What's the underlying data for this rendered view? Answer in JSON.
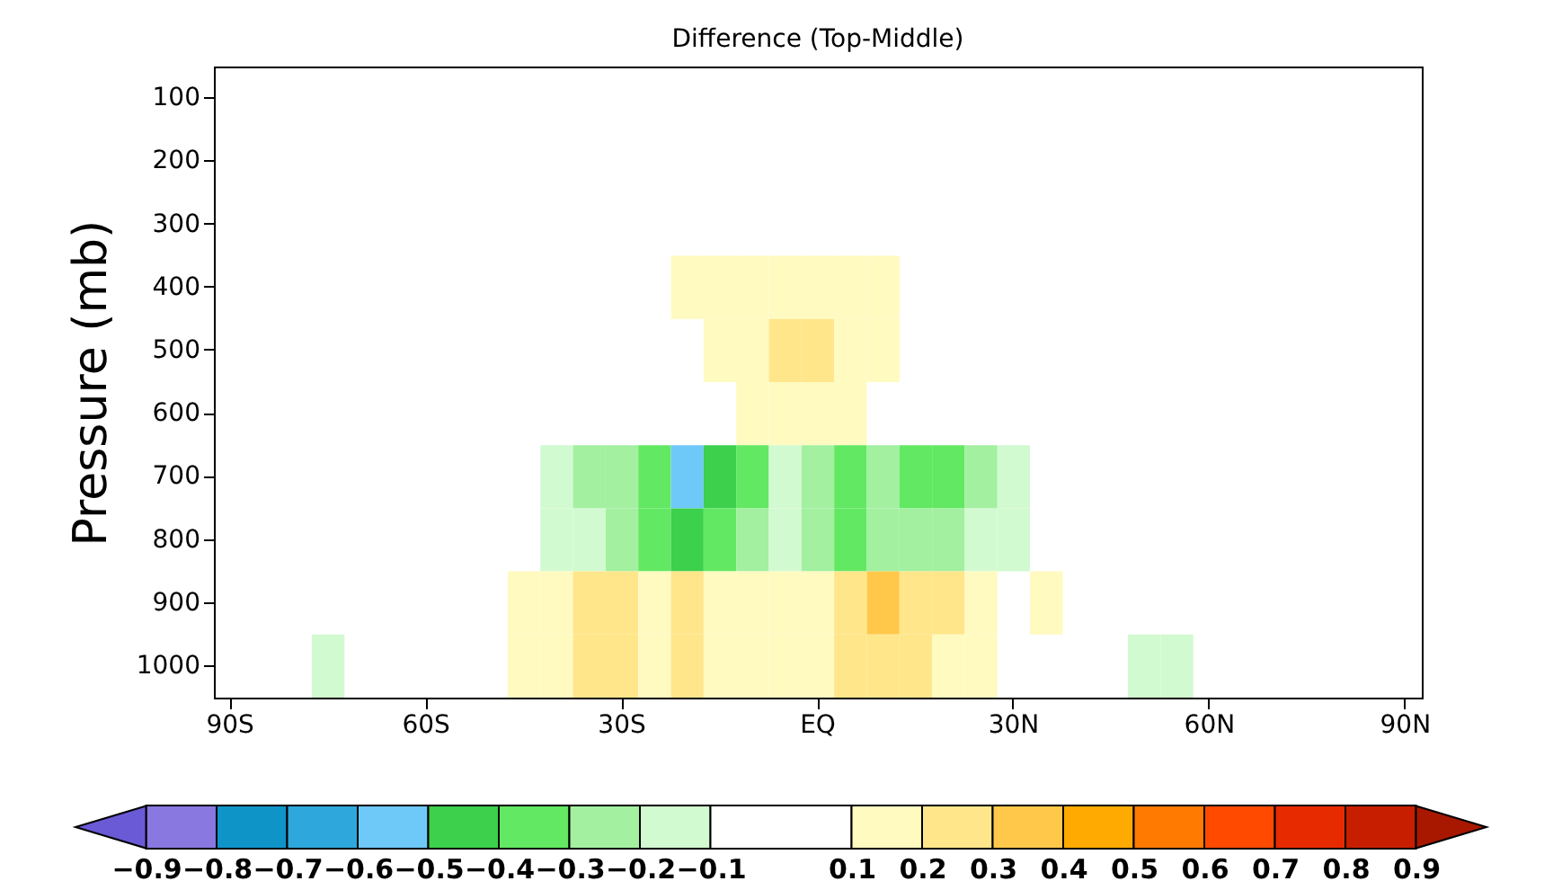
{
  "chart_data": {
    "type": "heatmap",
    "title": "Difference (Top-Middle)",
    "ylabel": "Pressure (mb)",
    "categories": [
      "90S",
      null,
      null,
      null,
      null,
      null,
      "60S",
      null,
      null,
      null,
      null,
      null,
      "30S",
      null,
      null,
      null,
      null,
      null,
      "EQ",
      null,
      null,
      null,
      null,
      null,
      "30N",
      null,
      null,
      null,
      null,
      null,
      "60N",
      null,
      null,
      null,
      null,
      null,
      "90N"
    ],
    "y_categories": [
      "100",
      "200",
      "300",
      "400",
      "500",
      "600",
      "700",
      "800",
      "900",
      "1000"
    ],
    "cells": [
      [
        null,
        null,
        null,
        null,
        null,
        null,
        null,
        null,
        null,
        null,
        null,
        null,
        null,
        null,
        null,
        null,
        null,
        null,
        null,
        null,
        null,
        null,
        null,
        null,
        null,
        null,
        null,
        null,
        null,
        null,
        null,
        null,
        null,
        null,
        null,
        null,
        null
      ],
      [
        null,
        null,
        null,
        null,
        null,
        null,
        null,
        null,
        null,
        null,
        null,
        null,
        null,
        null,
        null,
        null,
        null,
        null,
        null,
        null,
        null,
        null,
        null,
        null,
        null,
        null,
        null,
        null,
        null,
        null,
        null,
        null,
        null,
        null,
        null,
        null,
        null
      ],
      [
        null,
        null,
        null,
        null,
        null,
        null,
        null,
        null,
        null,
        null,
        null,
        null,
        null,
        null,
        null,
        null,
        null,
        null,
        null,
        null,
        null,
        null,
        null,
        null,
        null,
        null,
        null,
        null,
        null,
        null,
        null,
        null,
        null,
        null,
        null,
        null,
        null
      ],
      [
        null,
        null,
        null,
        null,
        null,
        null,
        null,
        null,
        null,
        null,
        null,
        null,
        null,
        null,
        0.15,
        0.15,
        0.15,
        0.15,
        0.15,
        0.15,
        0.15,
        null,
        null,
        null,
        null,
        null,
        null,
        null,
        null,
        null,
        null,
        null,
        null,
        null,
        null,
        null,
        null
      ],
      [
        null,
        null,
        null,
        null,
        null,
        null,
        null,
        null,
        null,
        null,
        null,
        null,
        null,
        null,
        null,
        0.15,
        0.15,
        0.25,
        0.25,
        0.15,
        0.15,
        null,
        null,
        null,
        null,
        null,
        null,
        null,
        null,
        null,
        null,
        null,
        null,
        null,
        null,
        null,
        null
      ],
      [
        null,
        null,
        null,
        null,
        null,
        null,
        null,
        null,
        null,
        null,
        null,
        null,
        null,
        null,
        null,
        null,
        0.15,
        0.15,
        0.15,
        0.15,
        null,
        null,
        null,
        null,
        null,
        null,
        null,
        null,
        null,
        null,
        null,
        null,
        null,
        null,
        null,
        null,
        null
      ],
      [
        null,
        null,
        null,
        null,
        null,
        null,
        null,
        null,
        null,
        null,
        -0.15,
        -0.25,
        -0.25,
        -0.35,
        -0.55,
        -0.45,
        -0.35,
        -0.15,
        -0.25,
        -0.35,
        -0.25,
        -0.35,
        -0.35,
        -0.25,
        -0.15,
        null,
        null,
        null,
        null,
        null,
        null,
        null,
        null,
        null,
        null,
        null,
        null
      ],
      [
        null,
        null,
        null,
        null,
        null,
        null,
        null,
        null,
        null,
        null,
        -0.15,
        -0.15,
        -0.25,
        -0.35,
        -0.45,
        -0.35,
        -0.25,
        -0.15,
        -0.25,
        -0.35,
        -0.25,
        -0.25,
        -0.25,
        -0.15,
        -0.15,
        null,
        null,
        null,
        null,
        null,
        null,
        null,
        null,
        null,
        null,
        null,
        null
      ],
      [
        null,
        null,
        null,
        null,
        null,
        null,
        null,
        null,
        null,
        0.15,
        0.15,
        0.25,
        0.25,
        0.15,
        0.25,
        0.15,
        0.15,
        0.15,
        0.15,
        0.25,
        0.35,
        0.25,
        0.25,
        0.15,
        null,
        0.15,
        null,
        null,
        null,
        null,
        null,
        null,
        null,
        null,
        null,
        null,
        null
      ],
      [
        null,
        null,
        null,
        -0.15,
        null,
        null,
        null,
        null,
        null,
        0.15,
        0.15,
        0.25,
        0.25,
        0.15,
        0.25,
        0.15,
        0.15,
        0.15,
        0.15,
        0.25,
        0.25,
        0.25,
        0.15,
        0.15,
        null,
        null,
        null,
        null,
        -0.15,
        -0.15,
        null,
        null,
        null,
        null,
        null,
        null,
        null
      ]
    ],
    "cticks": [
      -0.9,
      -0.8,
      -0.7,
      -0.6,
      -0.5,
      -0.4,
      -0.3,
      -0.2,
      -0.1,
      0.1,
      0.2,
      0.3,
      0.4,
      0.5,
      0.6,
      0.7,
      0.8,
      0.9
    ],
    "colors": [
      "#6a5ad6",
      "#8878e0",
      "#0f94c8",
      "#2ea8dc",
      "#6ec8f8",
      "#3cd04c",
      "#62e862",
      "#a2f0a0",
      "#d2fad0",
      "#ffffff",
      "#fffac0",
      "#ffe68a",
      "#ffc84a",
      "#ffaa00",
      "#ff7a00",
      "#ff4a00",
      "#e82a00",
      "#c81e00",
      "#a81800"
    ]
  }
}
